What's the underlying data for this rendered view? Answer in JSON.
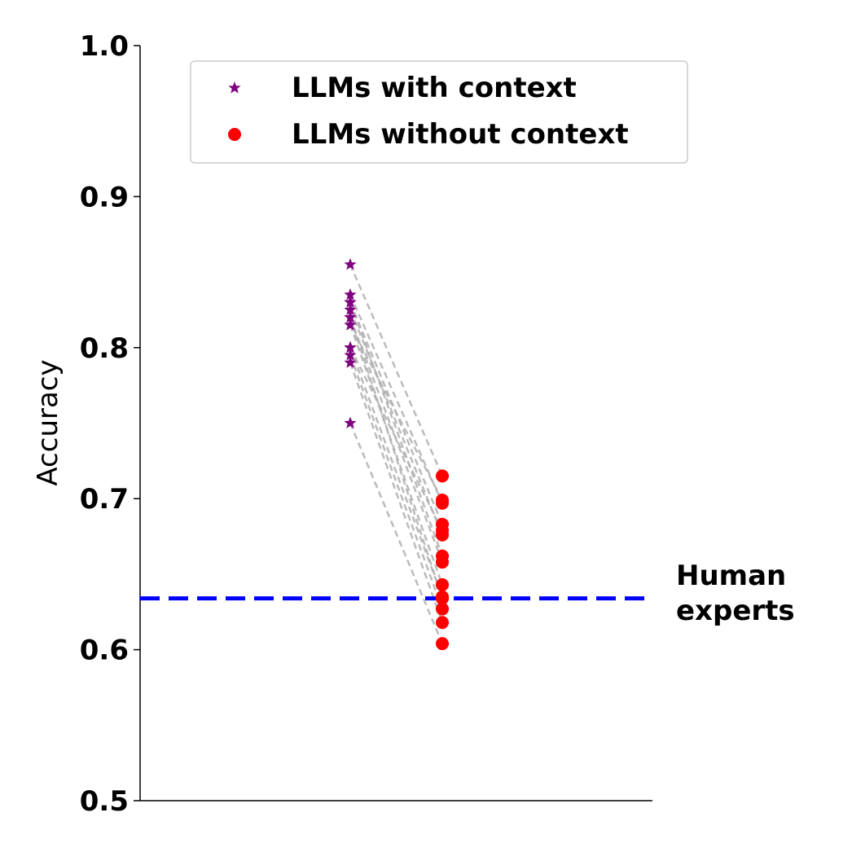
{
  "chart_data": {
    "type": "scatter",
    "ylabel": "Accuracy",
    "xlabel": "",
    "ylim": [
      0.5,
      1.0
    ],
    "yticks": [
      "0.5",
      "0.6",
      "0.7",
      "0.8",
      "0.9",
      "1.0"
    ],
    "grid": false,
    "legend_position": "top",
    "series": [
      {
        "name": "LLMs with context",
        "marker": "star",
        "color": "#800080",
        "values": [
          0.855,
          0.835,
          0.83,
          0.825,
          0.82,
          0.815,
          0.8,
          0.795,
          0.79,
          0.75,
          0.815,
          0.8,
          0.83,
          0.82
        ]
      },
      {
        "name": "LLMs without context",
        "marker": "circle",
        "color": "#ff0000",
        "values": [
          0.715,
          0.697,
          0.683,
          0.676,
          0.658,
          0.643,
          0.635,
          0.627,
          0.618,
          0.604,
          0.699,
          0.679,
          0.662,
          0.634
        ]
      }
    ],
    "connector_color": "#b0b0b0",
    "reference_line": {
      "value": 0.634,
      "color": "#0000ff",
      "label_line1": "Human",
      "label_line2": "experts"
    }
  }
}
